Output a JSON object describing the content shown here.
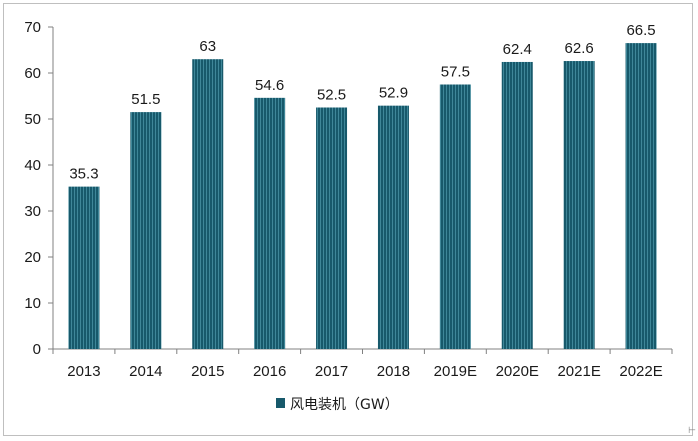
{
  "chart_data": {
    "type": "bar",
    "categories": [
      "2013",
      "2014",
      "2015",
      "2016",
      "2017",
      "2018",
      "2019E",
      "2020E",
      "2021E",
      "2022E"
    ],
    "series": [
      {
        "name": "风电装机（GW）",
        "values": [
          35.3,
          51.5,
          63,
          54.6,
          52.5,
          52.9,
          57.5,
          62.4,
          62.6,
          66.5
        ]
      }
    ],
    "data_labels": [
      "35.3",
      "51.5",
      "63",
      "54.6",
      "52.5",
      "52.9",
      "57.5",
      "62.4",
      "62.6",
      "66.5"
    ],
    "y_ticks": [
      "0",
      "10",
      "20",
      "30",
      "40",
      "50",
      "60",
      "70"
    ],
    "ylim": [
      0,
      70
    ],
    "grid": false,
    "legend_position": "bottom",
    "title": "",
    "xlabel": "",
    "ylabel": "",
    "colors": {
      "bar": "#17596b",
      "bar_stripe": "#3f8799",
      "axis": "#808080"
    }
  }
}
